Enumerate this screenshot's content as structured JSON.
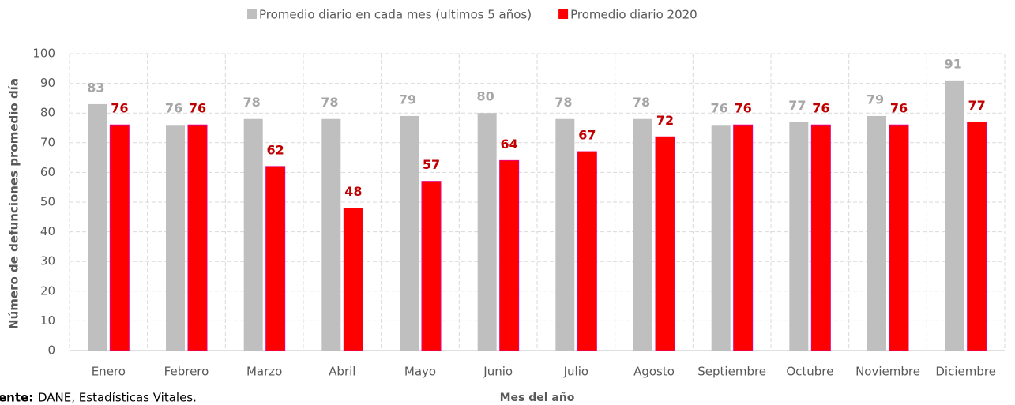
{
  "chart_data": {
    "type": "bar",
    "categories": [
      "Enero",
      "Febrero",
      "Marzo",
      "Abril",
      "Mayo",
      "Junio",
      "Julio",
      "Agosto",
      "Septiembre",
      "Octubre",
      "Noviembre",
      "Diciembre"
    ],
    "series": [
      {
        "name": "Promedio diario en cada mes (ultimos 5 años)",
        "color": "#bfbfbf",
        "label_color": "#a6a6a6",
        "values": [
          83,
          76,
          78,
          78,
          79,
          80,
          78,
          78,
          76,
          77,
          79,
          91
        ]
      },
      {
        "name": "Promedio diario 2020",
        "color": "#ff0000",
        "label_color": "#c00000",
        "values": [
          76,
          76,
          62,
          48,
          57,
          64,
          67,
          72,
          76,
          76,
          76,
          77
        ]
      }
    ],
    "ylim": [
      0,
      100
    ],
    "yticks": [
      0,
      10,
      20,
      30,
      40,
      50,
      60,
      70,
      80,
      90,
      100
    ],
    "grid": true,
    "y_label": "Número de defunciones promedio día",
    "x_label": "Mes del año",
    "source_label": "ente:",
    "source_text": "DANE, Estadísticas Vitales."
  }
}
